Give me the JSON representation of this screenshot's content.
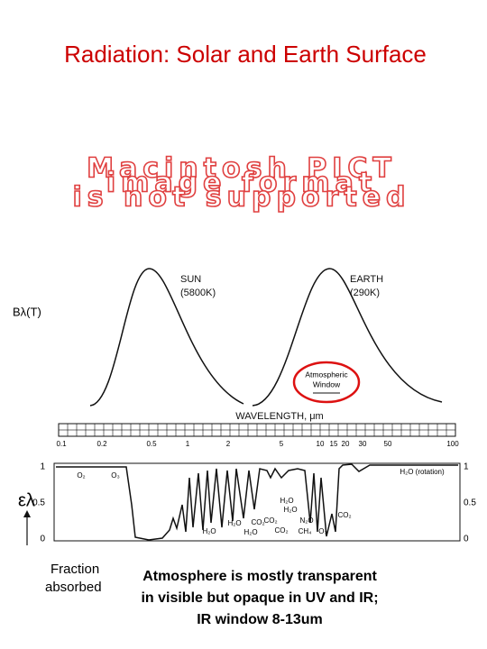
{
  "title": "Radiation: Solar and Earth Surface",
  "placeholder": [
    "Macintosh PICT",
    "image format",
    "is not supported"
  ],
  "figure": {
    "y_label": "Bλ(T)",
    "sun": [
      "SUN",
      "(5800K)"
    ],
    "earth": [
      "EARTH",
      "(290K)"
    ],
    "window": [
      "Atmospheric",
      "Window"
    ],
    "x_label": "WAVELENGTH, μm",
    "x_ticks": [
      "0.1",
      "0.2",
      "0.5",
      "1",
      "2",
      "5",
      "10",
      "15",
      "20",
      "30",
      "50",
      "100"
    ],
    "abs_symbol": "ελ",
    "abs_ticks": [
      "1",
      "0.5",
      "0"
    ],
    "gases": [
      "O₂",
      "O₃",
      "H₂O (rotation)",
      "H₂O",
      "CO₂",
      "N₂O",
      "H₂O",
      "H₂O",
      "CO₂",
      "H₂O",
      "CO₂",
      "CH₄",
      "O₃",
      "H₂O",
      "CO₂"
    ],
    "abs_label": [
      "Fraction",
      "absorbed"
    ]
  },
  "caption": [
    "Atmosphere is mostly transparent",
    "in visible but opaque in UV and IR;",
    "IR window 8-13um"
  ]
}
